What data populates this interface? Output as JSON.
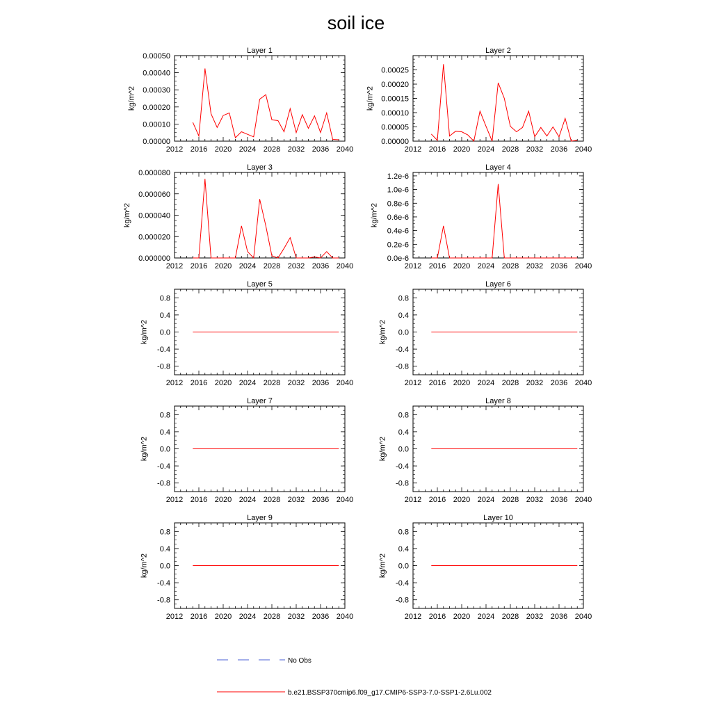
{
  "title": "soil ice",
  "colors": {
    "model": "#ff0000",
    "obs": "#4a5fd6",
    "axis": "#000000"
  },
  "legend": {
    "obs_label": "No Obs",
    "model_label": "b.e21.BSSP370cmip6.f09_g17.CMIP6-SSP3-7.0-SSP1-2.6Lu.002"
  },
  "chart_data": [
    {
      "type": "line",
      "title": "Layer 1",
      "ylabel": "kg/m^2",
      "xlim": [
        2012,
        2040
      ],
      "xticks": [
        2012,
        2016,
        2020,
        2024,
        2028,
        2032,
        2036,
        2040
      ],
      "ylim": [
        0,
        0.0005
      ],
      "yticks": [
        0,
        0.0001,
        0.0002,
        0.0003,
        0.0004,
        0.0005
      ],
      "ytick_labels": [
        "0.00000",
        "0.00010",
        "0.00020",
        "0.00030",
        "0.00040",
        "0.00050"
      ],
      "series": [
        {
          "x": [
            2015,
            2016,
            2017,
            2018,
            2019,
            2020,
            2021,
            2022,
            2023,
            2024,
            2025,
            2026,
            2027,
            2028,
            2029,
            2030,
            2031,
            2032,
            2033,
            2034,
            2035,
            2036,
            2037,
            2038,
            2039
          ],
          "y": [
            0.00011,
            3e-05,
            0.000425,
            0.00016,
            8e-05,
            0.00015,
            0.000165,
            2e-05,
            5.5e-05,
            4e-05,
            2.5e-05,
            0.000245,
            0.000272,
            0.000125,
            0.00012,
            5.5e-05,
            0.00019,
            5e-05,
            0.000155,
            7.5e-05,
            0.000148,
            5e-05,
            0.000165,
            1e-05,
            8e-06
          ]
        }
      ]
    },
    {
      "type": "line",
      "title": "Layer 2",
      "ylabel": "kg/m^2",
      "xlim": [
        2012,
        2040
      ],
      "xticks": [
        2012,
        2016,
        2020,
        2024,
        2028,
        2032,
        2036,
        2040
      ],
      "ylim": [
        0,
        0.0003
      ],
      "yticks": [
        0,
        5e-05,
        0.0001,
        0.00015,
        0.0002,
        0.00025
      ],
      "ytick_labels": [
        "0.00000",
        "0.00005",
        "0.00010",
        "0.00015",
        "0.00020",
        "0.00025"
      ],
      "series": [
        {
          "x": [
            2015,
            2016,
            2017,
            2018,
            2019,
            2020,
            2021,
            2022,
            2023,
            2024,
            2025,
            2026,
            2027,
            2028,
            2029,
            2030,
            2031,
            2032,
            2033,
            2034,
            2035,
            2036,
            2037,
            2038,
            2039
          ],
          "y": [
            2.5e-05,
            3e-06,
            0.00027,
            1.8e-05,
            3.5e-05,
            3.3e-05,
            2.2e-05,
            0.0,
            0.000105,
            5.2e-05,
            0.0,
            0.000205,
            0.00015,
            5.2e-05,
            3.3e-05,
            4.8e-05,
            0.000105,
            1.5e-05,
            4.8e-05,
            1.8e-05,
            5e-05,
            1.5e-05,
            8e-05,
            0.0,
            3e-06
          ]
        }
      ]
    },
    {
      "type": "line",
      "title": "Layer 3",
      "ylabel": "kg/m^2",
      "xlim": [
        2012,
        2040
      ],
      "xticks": [
        2012,
        2016,
        2020,
        2024,
        2028,
        2032,
        2036,
        2040
      ],
      "ylim": [
        0,
        8e-05
      ],
      "yticks": [
        0,
        2e-05,
        4e-05,
        6e-05,
        8e-05
      ],
      "ytick_labels": [
        "0.000000",
        "0.000020",
        "0.000040",
        "0.000060",
        "0.000080"
      ],
      "series": [
        {
          "x": [
            2015,
            2016,
            2017,
            2018,
            2019,
            2020,
            2021,
            2022,
            2023,
            2024,
            2025,
            2026,
            2027,
            2028,
            2029,
            2030,
            2031,
            2032,
            2033,
            2034,
            2035,
            2036,
            2037,
            2038,
            2039
          ],
          "y": [
            0.0,
            0.0,
            7.4e-05,
            0.0,
            0.0,
            0.0,
            0.0,
            0.0,
            3e-05,
            6e-06,
            0.0,
            5.5e-05,
            3e-05,
            2e-06,
            0.0,
            9e-06,
            1.9e-05,
            0.0,
            0.0,
            0.0,
            1e-06,
            0.0,
            6e-06,
            0.0,
            0.0
          ]
        }
      ]
    },
    {
      "type": "line",
      "title": "Layer 4",
      "ylabel": "kg/m^2",
      "xlim": [
        2012,
        2040
      ],
      "xticks": [
        2012,
        2016,
        2020,
        2024,
        2028,
        2032,
        2036,
        2040
      ],
      "ylim": [
        0,
        1.25e-06
      ],
      "yticks": [
        0,
        2e-07,
        4e-07,
        6e-07,
        8e-07,
        1e-06,
        1.2e-06
      ],
      "ytick_labels": [
        "0.0e-6",
        "0.2e-6",
        "0.4e-6",
        "0.6e-6",
        "0.8e-6",
        "1.0e-6",
        "1.2e-6"
      ],
      "series": [
        {
          "x": [
            2015,
            2016,
            2017,
            2018,
            2019,
            2020,
            2021,
            2022,
            2023,
            2024,
            2025,
            2026,
            2027,
            2028,
            2029,
            2030,
            2031,
            2032,
            2033,
            2034,
            2035,
            2036,
            2037,
            2038,
            2039
          ],
          "y": [
            0,
            0,
            4.7e-07,
            0,
            0,
            0,
            0,
            0,
            0,
            0,
            0,
            1.08e-06,
            0,
            0,
            0,
            0,
            0,
            0,
            0,
            0,
            0,
            0,
            0,
            0,
            0
          ]
        }
      ]
    },
    {
      "type": "line",
      "title": "Layer 5",
      "ylabel": "kg/m^2",
      "xlim": [
        2012,
        2040
      ],
      "xticks": [
        2012,
        2016,
        2020,
        2024,
        2028,
        2032,
        2036,
        2040
      ],
      "ylim": [
        -1,
        1
      ],
      "yticks": [
        -0.8,
        -0.4,
        0,
        0.4,
        0.8
      ],
      "ytick_labels": [
        "-0.8",
        "-0.4",
        "0.0",
        "0.4",
        "0.8"
      ],
      "series": [
        {
          "x": [
            2015,
            2039
          ],
          "y": [
            0,
            0
          ]
        }
      ]
    },
    {
      "type": "line",
      "title": "Layer 6",
      "ylabel": "kg/m^2",
      "xlim": [
        2012,
        2040
      ],
      "xticks": [
        2012,
        2016,
        2020,
        2024,
        2028,
        2032,
        2036,
        2040
      ],
      "ylim": [
        -1,
        1
      ],
      "yticks": [
        -0.8,
        -0.4,
        0,
        0.4,
        0.8
      ],
      "ytick_labels": [
        "-0.8",
        "-0.4",
        "0.0",
        "0.4",
        "0.8"
      ],
      "series": [
        {
          "x": [
            2015,
            2039
          ],
          "y": [
            0,
            0
          ]
        }
      ]
    },
    {
      "type": "line",
      "title": "Layer 7",
      "ylabel": "kg/m^2",
      "xlim": [
        2012,
        2040
      ],
      "xticks": [
        2012,
        2016,
        2020,
        2024,
        2028,
        2032,
        2036,
        2040
      ],
      "ylim": [
        -1,
        1
      ],
      "yticks": [
        -0.8,
        -0.4,
        0,
        0.4,
        0.8
      ],
      "ytick_labels": [
        "-0.8",
        "-0.4",
        "0.0",
        "0.4",
        "0.8"
      ],
      "series": [
        {
          "x": [
            2015,
            2039
          ],
          "y": [
            0,
            0
          ]
        }
      ]
    },
    {
      "type": "line",
      "title": "Layer 8",
      "ylabel": "kg/m^2",
      "xlim": [
        2012,
        2040
      ],
      "xticks": [
        2012,
        2016,
        2020,
        2024,
        2028,
        2032,
        2036,
        2040
      ],
      "ylim": [
        -1,
        1
      ],
      "yticks": [
        -0.8,
        -0.4,
        0,
        0.4,
        0.8
      ],
      "ytick_labels": [
        "-0.8",
        "-0.4",
        "0.0",
        "0.4",
        "0.8"
      ],
      "series": [
        {
          "x": [
            2015,
            2039
          ],
          "y": [
            0,
            0
          ]
        }
      ]
    },
    {
      "type": "line",
      "title": "Layer 9",
      "ylabel": "kg/m^2",
      "xlim": [
        2012,
        2040
      ],
      "xticks": [
        2012,
        2016,
        2020,
        2024,
        2028,
        2032,
        2036,
        2040
      ],
      "ylim": [
        -1,
        1
      ],
      "yticks": [
        -0.8,
        -0.4,
        0,
        0.4,
        0.8
      ],
      "ytick_labels": [
        "-0.8",
        "-0.4",
        "0.0",
        "0.4",
        "0.8"
      ],
      "series": [
        {
          "x": [
            2015,
            2039
          ],
          "y": [
            0,
            0
          ]
        }
      ]
    },
    {
      "type": "line",
      "title": "Layer 10",
      "ylabel": "kg/m^2",
      "xlim": [
        2012,
        2040
      ],
      "xticks": [
        2012,
        2016,
        2020,
        2024,
        2028,
        2032,
        2036,
        2040
      ],
      "ylim": [
        -1,
        1
      ],
      "yticks": [
        -0.8,
        -0.4,
        0,
        0.4,
        0.8
      ],
      "ytick_labels": [
        "-0.8",
        "-0.4",
        "0.0",
        "0.4",
        "0.8"
      ],
      "series": [
        {
          "x": [
            2015,
            2039
          ],
          "y": [
            0,
            0
          ]
        }
      ]
    }
  ]
}
